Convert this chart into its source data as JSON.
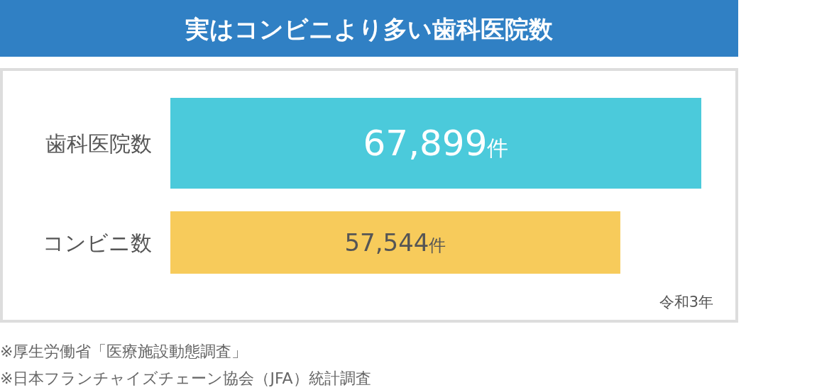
{
  "chart_data": {
    "type": "bar",
    "orientation": "horizontal",
    "title": "実はコンビニより多い歯科医院数",
    "categories": [
      "歯科医院数",
      "コンビニ数"
    ],
    "values": [
      67899,
      57544
    ],
    "colors": [
      "#4bcadb",
      "#f7cb5b"
    ],
    "value_labels": [
      "67,899件",
      "57,544件"
    ],
    "annotations": [
      "令和3年",
      "※厚生労働省「医療施設動態調査」",
      "※日本フランチャイズチェーン協会（JFA）統計調査"
    ]
  }
}
